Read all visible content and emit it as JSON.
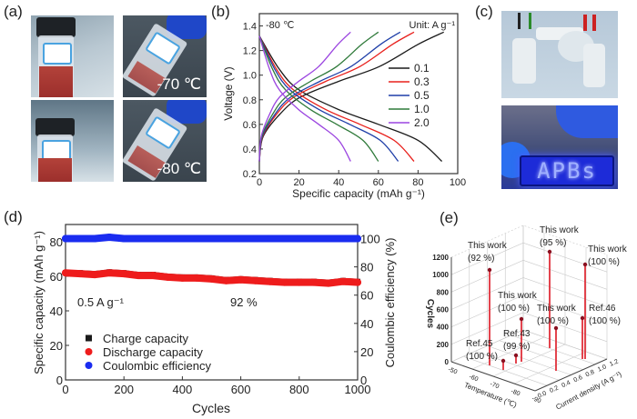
{
  "panels": {
    "a": "(a)",
    "b": "(b)",
    "c": "(c)",
    "d": "(d)",
    "e": "(e)"
  },
  "panel_a": {
    "photos": [
      {
        "caption": ""
      },
      {
        "caption": "-70 ℃"
      },
      {
        "caption": ""
      },
      {
        "caption": "-80 ℃"
      }
    ]
  },
  "panel_c": {
    "led_text": "APBs"
  },
  "chart_data": [
    {
      "type": "line",
      "title": "",
      "annotation": "-80 ℃",
      "unit_note": "Unit: A g⁻¹",
      "xlabel": "Specific capacity (mAh g⁻¹)",
      "ylabel": "Voltage (V)",
      "xlim": [
        0,
        100
      ],
      "ylim": [
        0.2,
        1.5
      ],
      "x_ticks": [
        "0",
        "20",
        "40",
        "60",
        "80",
        "100"
      ],
      "y_ticks": [
        "0.2",
        "0.4",
        "0.6",
        "0.8",
        "1.0",
        "1.2",
        "1.4"
      ],
      "legend_placement": "right",
      "series": [
        {
          "name": "0.1",
          "color": "#1a1a1a",
          "discharge": {
            "x": [
              0,
              10,
              20,
              40,
              60,
              80,
              92
            ],
            "y": [
              1.32,
              1.05,
              0.88,
              0.72,
              0.6,
              0.47,
              0.3
            ]
          },
          "charge": {
            "x": [
              0,
              1.9,
              10.2,
              20.5,
              40,
              60.5,
              80,
              93
            ],
            "y": [
              0.3,
              0.5,
              0.68,
              0.82,
              0.95,
              1.07,
              1.25,
              1.35
            ]
          }
        },
        {
          "name": "0.3",
          "color": "#e8201c",
          "discharge": {
            "x": [
              0,
              8.6,
              17.2,
              33.5,
              50.7,
              67.9,
              78
            ],
            "y": [
              1.32,
              1.05,
              0.88,
              0.72,
              0.6,
              0.47,
              0.3
            ]
          },
          "charge": {
            "x": [
              0,
              1.6,
              8.6,
              17.2,
              33.5,
              50.7,
              67.1,
              78
            ],
            "y": [
              0.3,
              0.5,
              0.68,
              0.82,
              0.95,
              1.07,
              1.25,
              1.35
            ]
          }
        },
        {
          "name": "0.5",
          "color": "#1f3fa8",
          "discharge": {
            "x": [
              0,
              7.7,
              15.4,
              30.1,
              45.5,
              60.9,
              70
            ],
            "y": [
              1.32,
              1.05,
              0.88,
              0.72,
              0.6,
              0.47,
              0.3
            ]
          },
          "charge": {
            "x": [
              0,
              1.4,
              7.8,
              15.6,
              30.5,
              46.2,
              61.1,
              71
            ],
            "y": [
              0.3,
              0.5,
              0.68,
              0.82,
              0.95,
              1.07,
              1.25,
              1.35
            ]
          }
        },
        {
          "name": "1.0",
          "color": "#2f7a3a",
          "discharge": {
            "x": [
              0,
              6.6,
              13.2,
              25.8,
              39,
              52.2,
              60
            ],
            "y": [
              1.32,
              1.05,
              0.88,
              0.72,
              0.6,
              0.47,
              0.3
            ]
          },
          "charge": {
            "x": [
              0,
              1.2,
              6.6,
              13.2,
              25.8,
              39,
              51.6,
              60
            ],
            "y": [
              0.3,
              0.5,
              0.68,
              0.82,
              0.95,
              1.07,
              1.25,
              1.35
            ]
          }
        },
        {
          "name": "2.0",
          "color": "#9b45e0",
          "discharge": {
            "x": [
              0,
              5.1,
              10.1,
              19.8,
              29.9,
              40,
              46
            ],
            "y": [
              1.32,
              1.05,
              0.88,
              0.72,
              0.6,
              0.47,
              0.3
            ]
          },
          "charge": {
            "x": [
              0,
              0.9,
              5.1,
              10.1,
              19.8,
              29.9,
              39.6,
              46
            ],
            "y": [
              0.3,
              0.5,
              0.68,
              0.82,
              0.95,
              1.07,
              1.25,
              1.35
            ]
          }
        }
      ]
    },
    {
      "type": "scatter",
      "title": "",
      "xlabel": "Cycles",
      "ylabel": "Specific capacity (mAh g⁻¹)",
      "y2label": "Coulombic efficiency (%)",
      "xlim": [
        0,
        1000
      ],
      "ylim": [
        0,
        90
      ],
      "y2lim": [
        0,
        110
      ],
      "x_ticks": [
        "0",
        "200",
        "400",
        "600",
        "800",
        "1000"
      ],
      "y_ticks": [
        "0",
        "20",
        "40",
        "60",
        "80"
      ],
      "y2_ticks": [
        "0",
        "20",
        "40",
        "60",
        "80",
        "100"
      ],
      "annotations": [
        "0.5 A g⁻¹",
        "92 %"
      ],
      "legend_placement": "bottom-left",
      "x": [
        0,
        50,
        100,
        150,
        200,
        250,
        300,
        350,
        400,
        450,
        500,
        550,
        600,
        650,
        700,
        750,
        800,
        850,
        900,
        950,
        1000
      ],
      "series": [
        {
          "name": "Charge capacity",
          "color": "#1a1a1a",
          "marker": "square",
          "axis": "left",
          "values": [
            62,
            62,
            61.5,
            62.5,
            62,
            61,
            61,
            60,
            59.5,
            59.5,
            59,
            58,
            58.5,
            58,
            57.5,
            57,
            57,
            57,
            56.5,
            57.5,
            57
          ]
        },
        {
          "name": "Discharge capacity",
          "color": "#ee1c1c",
          "marker": "circle",
          "axis": "left",
          "values": [
            62,
            61.5,
            61,
            62,
            61.5,
            60.5,
            60.5,
            59.5,
            59,
            59,
            58.5,
            57.5,
            58,
            57.5,
            57,
            56.5,
            56.5,
            56.5,
            56,
            57,
            56.5
          ]
        },
        {
          "name": "Coulombic efficiency",
          "color": "#1a2cf0",
          "marker": "circle",
          "axis": "right",
          "values": [
            100,
            100,
            100,
            101,
            100,
            100,
            100,
            100,
            100,
            100,
            100,
            100,
            100,
            100,
            100,
            100,
            100,
            100,
            100,
            100,
            100
          ]
        }
      ]
    },
    {
      "type": "scatter3d",
      "title": "",
      "xlabel": "Temperature (℃)",
      "ylabel": "Current density (A g⁻¹)",
      "zlabel": "Cycles",
      "x_ticks": [
        "-50",
        "-60",
        "-70",
        "-80",
        "-90"
      ],
      "y_ticks": [
        "0.0",
        "0.2",
        "0.4",
        "0.6",
        "0.8",
        "1.0",
        "1.2"
      ],
      "z_ticks": [
        "0",
        "200",
        "400",
        "600",
        "800",
        "1000",
        "1200"
      ],
      "zlim": [
        0,
        1200
      ],
      "stem_color": "#e0303a",
      "points": [
        {
          "label": "This work",
          "retention": "(92 %)",
          "temperature": -80,
          "current_density": 0.5,
          "cycles": 1000
        },
        {
          "label": "This work",
          "retention": "(95 %)",
          "temperature": -70,
          "current_density": 1.0,
          "cycles": 1100
        },
        {
          "label": "This work",
          "retention": "(100 %)",
          "temperature": -60,
          "current_density": 1.2,
          "cycles": 1000
        },
        {
          "label": "This work",
          "retention": "(100 %)",
          "temperature": -80,
          "current_density": 0.3,
          "cycles": 500
        },
        {
          "label": "This work",
          "retention": "(100 %)",
          "temperature": -70,
          "current_density": 0.5,
          "cycles": 500
        },
        {
          "label": "Ref.46",
          "retention": "(100 %)",
          "temperature": -60,
          "current_density": 1.0,
          "cycles": 500
        },
        {
          "label": "Ref.43",
          "retention": "(99 %)",
          "temperature": -80,
          "current_density": 0.2,
          "cycles": 100
        },
        {
          "label": "Ref.45",
          "retention": "(100 %)",
          "temperature": -80,
          "current_density": 0.1,
          "cycles": 100
        }
      ]
    }
  ]
}
